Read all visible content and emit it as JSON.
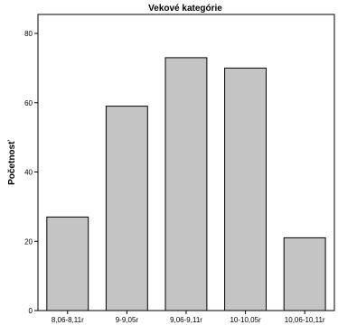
{
  "chart_data": {
    "type": "bar",
    "title": "Vekové kategórie",
    "xlabel": "",
    "ylabel": "Početnosť",
    "categories": [
      "8,06-8,11r",
      "9-9,05r",
      "9,06-9,11r",
      "10-10,05r",
      "10,06-10,11r"
    ],
    "values": [
      27,
      59,
      73,
      70,
      21
    ],
    "ylim": [
      0,
      80
    ],
    "yticks": [
      0,
      20,
      40,
      60,
      80
    ],
    "grid": false,
    "legend": "none",
    "colors": {
      "bar_fill": "#c4c4c4",
      "bar_stroke": "#000000",
      "frame": "#000000"
    }
  }
}
